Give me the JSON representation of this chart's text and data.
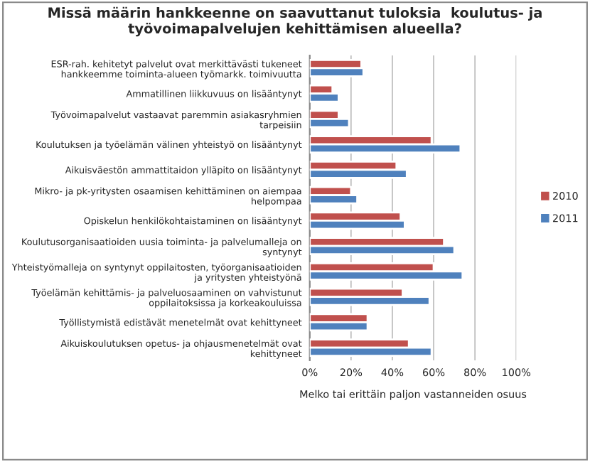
{
  "chart_data": {
    "type": "bar",
    "orientation": "horizontal",
    "title": "Missä määrin hankkeenne on saavuttanut tuloksia  koulutus- ja\ntyövoimapalvelujen kehittämisen alueella?",
    "xlabel": "Melko tai erittäin paljon vastanneiden osuus",
    "categories": [
      "ESR-rah. kehitetyt palvelut ovat merkittävästi tukeneet\nhankkeemme toiminta-alueen työmarkk. toimivuutta",
      "Ammatillinen liikkuvuus on lisääntynyt",
      "Työvoimapalvelut vastaavat paremmin asiakasryhmien\ntarpeisiin",
      "Koulutuksen ja työelämän välinen yhteistyö on lisääntynyt",
      "Aikuisväestön ammattitaidon ylläpito on lisääntynyt",
      "Mikro- ja pk-yritysten osaamisen kehittäminen on aiempaa\nhelpompaa",
      "Opiskelun henkilökohtaistaminen on lisääntynyt",
      "Koulutusorganisaatioiden uusia toiminta- ja palvelumalleja on\nsyntynyt",
      "Yhteistyömalleja on syntynyt oppilaitosten, työorganisaatioiden\nja yritysten yhteistyönä",
      "Työelämän kehittämis- ja palveluosaaminen on vahvistunut\noppilaitoksissa ja korkeakouluissa",
      "Työllistymistä edistävät menetelmät ovat kehittyneet",
      "Aikuiskoulutuksen opetus- ja ohjausmenetelmät ovat\nkehittyneet"
    ],
    "series": [
      {
        "name": "2010",
        "color": "#c0504d",
        "values": [
          25,
          11,
          14,
          59,
          42,
          20,
          44,
          65,
          60,
          45,
          28,
          48
        ]
      },
      {
        "name": "2011",
        "color": "#4f81bd",
        "values": [
          26,
          14,
          19,
          73,
          47,
          23,
          46,
          70,
          74,
          58,
          28,
          59
        ]
      }
    ],
    "xlim": [
      0,
      100
    ],
    "xticks": [
      {
        "value": 0,
        "label": "0%"
      },
      {
        "value": 20,
        "label": "20%"
      },
      {
        "value": 40,
        "label": "40%"
      },
      {
        "value": 60,
        "label": "60%"
      },
      {
        "value": 80,
        "label": "80%"
      },
      {
        "value": 100,
        "label": "100%"
      }
    ],
    "grid": "x",
    "legend": "right"
  }
}
